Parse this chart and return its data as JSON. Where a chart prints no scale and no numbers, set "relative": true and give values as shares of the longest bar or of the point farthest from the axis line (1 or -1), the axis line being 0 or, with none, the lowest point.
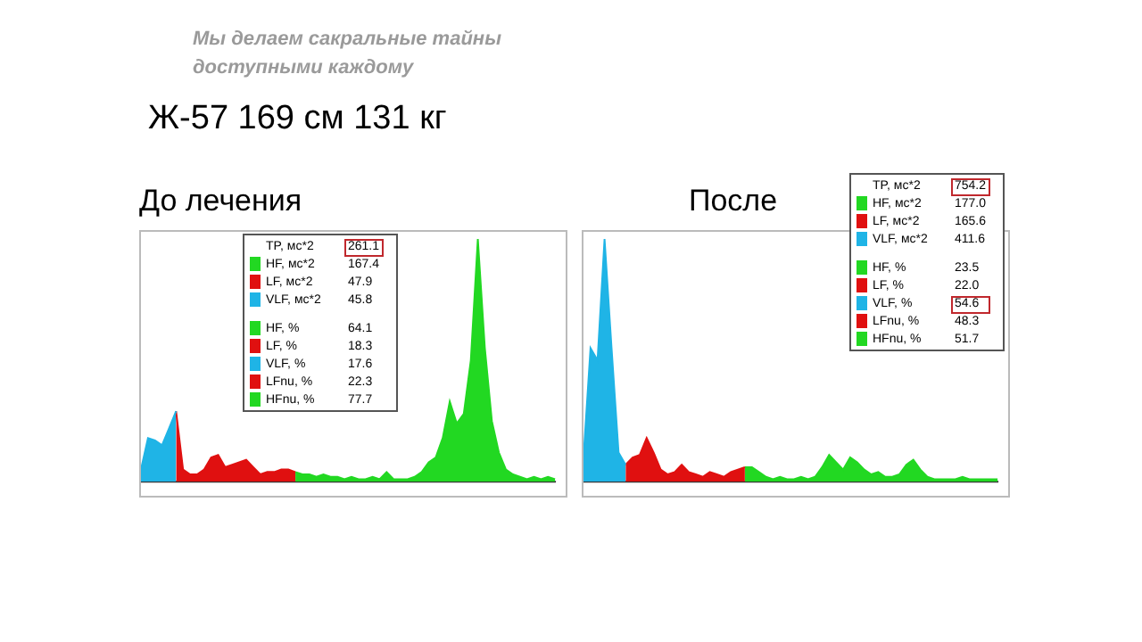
{
  "chart_data": [
    {
      "type": "other",
      "title": "Ж-57 169 см 131 кг",
      "subtitle": "Мы делаем сакральные тайны доступными каждому"
    },
    {
      "type": "area",
      "title": "До лечения",
      "relative": true,
      "categories": [
        null,
        null,
        null,
        null,
        null,
        null,
        null,
        null,
        null,
        null,
        null,
        null,
        null,
        null,
        null,
        null,
        null,
        null,
        null,
        null,
        null,
        null,
        null,
        null,
        null,
        null,
        null,
        null,
        null,
        null,
        null,
        null,
        null,
        null,
        null,
        null,
        null,
        null,
        null,
        null,
        null,
        null,
        null,
        null,
        null,
        null,
        null,
        null,
        null,
        null,
        null,
        null,
        null,
        null,
        null,
        null,
        null,
        null,
        null,
        null
      ],
      "series": [
        {
          "color": "#1fb4e6",
          "values": [
            0.05,
            0.18,
            0.17,
            0.15,
            0.22,
            0.29,
            null,
            null,
            null,
            null,
            null,
            null,
            null,
            null,
            null,
            null,
            null,
            null,
            null,
            null,
            null,
            null,
            null,
            null,
            null,
            null,
            null,
            null,
            null,
            null,
            null,
            null,
            null,
            null,
            null,
            null,
            null,
            null,
            null,
            null,
            null,
            null,
            null,
            null,
            null,
            null,
            null,
            null,
            null,
            null,
            null,
            null,
            null,
            null,
            null,
            null,
            null,
            null,
            null,
            null
          ]
        },
        {
          "color": "#e01010",
          "values": [
            null,
            null,
            null,
            null,
            null,
            0.29,
            0.05,
            0.03,
            0.03,
            0.05,
            0.1,
            0.11,
            0.06,
            0.07,
            0.08,
            0.09,
            0.06,
            0.03,
            0.04,
            0.04,
            0.05,
            0.05,
            0.04,
            null,
            null,
            null,
            null,
            null,
            null,
            null,
            null,
            null,
            null,
            null,
            null,
            null,
            null,
            null,
            null,
            null,
            null,
            null,
            null,
            null,
            null,
            null,
            null,
            null,
            null,
            null,
            null,
            null,
            null,
            null,
            null,
            null,
            null,
            null,
            null,
            null
          ]
        },
        {
          "color": "#22d822",
          "values": [
            null,
            null,
            null,
            null,
            null,
            null,
            null,
            null,
            null,
            null,
            null,
            null,
            null,
            null,
            null,
            null,
            null,
            null,
            null,
            null,
            null,
            null,
            0.04,
            0.03,
            0.03,
            0.02,
            0.03,
            0.02,
            0.02,
            0.01,
            0.02,
            0.01,
            0.01,
            0.02,
            0.01,
            0.04,
            0.01,
            0.01,
            0.01,
            0.02,
            0.04,
            0.08,
            0.1,
            0.18,
            0.33,
            0.24,
            0.28,
            0.5,
            1,
            0.55,
            0.25,
            0.12,
            0.05,
            0.03,
            0.02,
            0.01,
            0.02,
            0.01,
            0.02,
            0.01
          ]
        }
      ],
      "annotations": [
        "TP, мс*2",
        "261.1",
        "HF, мс*2",
        "167.4",
        "LF, мс*2",
        "47.9",
        "VLF, мс*2",
        "45.8",
        "HF, %",
        "64.1",
        "LF, %",
        "18.3",
        "VLF, %",
        "17.6",
        "LFnu, %",
        "22.3",
        "HFnu, %",
        "77.7"
      ]
    },
    {
      "type": "area",
      "title": "После",
      "relative": true,
      "categories": [
        null,
        null,
        null,
        null,
        null,
        null,
        null,
        null,
        null,
        null,
        null,
        null,
        null,
        null,
        null,
        null,
        null,
        null,
        null,
        null,
        null,
        null,
        null,
        null,
        null,
        null,
        null,
        null,
        null,
        null,
        null,
        null,
        null,
        null,
        null,
        null,
        null,
        null,
        null,
        null,
        null,
        null,
        null,
        null,
        null,
        null,
        null,
        null,
        null,
        null,
        null,
        null,
        null,
        null,
        null,
        null,
        null,
        null,
        null,
        null
      ],
      "series": [
        {
          "color": "#1fb4e6",
          "values": [
            0.1,
            0.55,
            0.5,
            1,
            0.55,
            0.12,
            0.07,
            null,
            null,
            null,
            null,
            null,
            null,
            null,
            null,
            null,
            null,
            null,
            null,
            null,
            null,
            null,
            null,
            null,
            null,
            null,
            null,
            null,
            null,
            null,
            null,
            null,
            null,
            null,
            null,
            null,
            null,
            null,
            null,
            null,
            null,
            null,
            null,
            null,
            null,
            null,
            null,
            null,
            null,
            null,
            null,
            null,
            null,
            null,
            null,
            null,
            null,
            null,
            null,
            null
          ]
        },
        {
          "color": "#e01010",
          "values": [
            null,
            null,
            null,
            null,
            null,
            null,
            0.07,
            0.1,
            0.11,
            0.18,
            0.12,
            0.05,
            0.03,
            0.04,
            0.07,
            0.04,
            0.03,
            0.02,
            0.04,
            0.03,
            0.02,
            0.04,
            0.05,
            0.06,
            null,
            null,
            null,
            null,
            null,
            null,
            null,
            null,
            null,
            null,
            null,
            null,
            null,
            null,
            null,
            null,
            null,
            null,
            null,
            null,
            null,
            null,
            null,
            null,
            null,
            null,
            null,
            null,
            null,
            null,
            null,
            null,
            null,
            null,
            null,
            null
          ]
        },
        {
          "color": "#22d822",
          "values": [
            null,
            null,
            null,
            null,
            null,
            null,
            null,
            null,
            null,
            null,
            null,
            null,
            null,
            null,
            null,
            null,
            null,
            null,
            null,
            null,
            null,
            null,
            null,
            0.06,
            0.06,
            0.04,
            0.02,
            0.01,
            0.02,
            0.01,
            0.01,
            0.02,
            0.01,
            0.02,
            0.06,
            0.11,
            0.08,
            0.05,
            0.1,
            0.08,
            0.05,
            0.03,
            0.04,
            0.02,
            0.02,
            0.03,
            0.07,
            0.09,
            0.05,
            0.02,
            0.01,
            0.01,
            0.01,
            0.01,
            0.02,
            0.01,
            0.01,
            0.01,
            0.01,
            0.01
          ]
        }
      ],
      "annotations": [
        "TP, мс*2",
        "754.2",
        "HF, мс*2",
        "177.0",
        "LF, мс*2",
        "165.6",
        "VLF, мс*2",
        "411.6",
        "HF, %",
        "23.5",
        "LF, %",
        "22.0",
        "VLF, %",
        "54.6",
        "LFnu, %",
        "48.3",
        "HFnu, %",
        "51.7"
      ]
    }
  ]
}
